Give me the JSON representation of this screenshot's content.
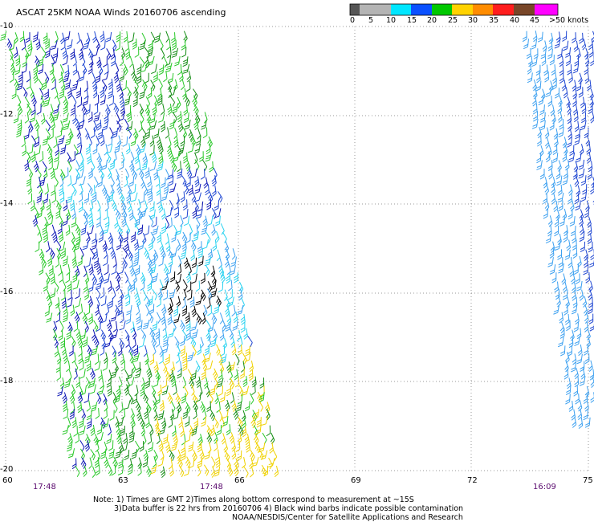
{
  "title": "ASCAT 25KM NOAA Winds 20160706 ascending",
  "colorbar": {
    "labels": [
      "0",
      "5",
      "10",
      "15",
      "20",
      "25",
      "30",
      "35",
      "40",
      "45",
      ">50 knots"
    ],
    "colors": [
      "#555555",
      "#b4b4b4",
      "#00e6ff",
      "#0a50ff",
      "#00c800",
      "#ffd200",
      "#ff8c00",
      "#ff1e1e",
      "#784628",
      "#ff00ff",
      "#7800c8"
    ]
  },
  "axes": {
    "lon_labels": [
      "60",
      "63",
      "66",
      "69",
      "72",
      "75"
    ],
    "lat_labels": [
      "-10",
      "-12",
      "-14",
      "-16",
      "-18",
      "-20"
    ]
  },
  "times": [
    "17:48",
    "17:48",
    "16:09"
  ],
  "notes": [
    "Note: 1) Times are GMT 2)Times along bottom correspond to measurement at ~15S",
    "3)Data buffer is 22 hrs from 20160706 4) Black wind barbs indicate possible contamination",
    "NOAA/NESDIS/Center for Satellite Applications and Research"
  ],
  "colors": {
    "grid": "#999999",
    "blue": "#1e46d2",
    "dark_blue": "#0a14b4",
    "light_blue": "#3ca0f0",
    "cyan": "#28d2f0",
    "green": "#28c828",
    "dark_green": "#148c14",
    "yellow": "#f0d200",
    "black": "#000000"
  }
}
